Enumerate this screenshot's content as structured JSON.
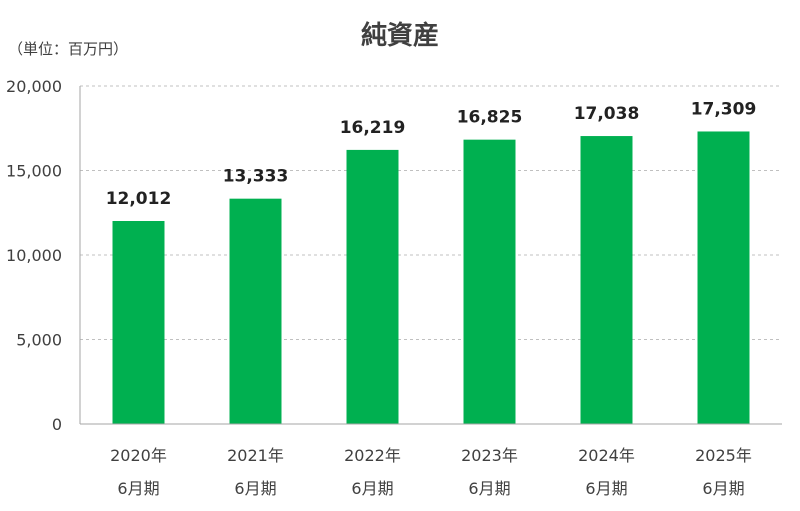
{
  "chart_data": {
    "type": "bar",
    "title": "純資産",
    "unit_label": "（単位：百万円）",
    "categories": [
      [
        "2020年",
        "6月期"
      ],
      [
        "2021年",
        "6月期"
      ],
      [
        "2022年",
        "6月期"
      ],
      [
        "2023年",
        "6月期"
      ],
      [
        "2024年",
        "6月期"
      ],
      [
        "2025年",
        "6月期"
      ]
    ],
    "values": [
      12012,
      13333,
      16219,
      16825,
      17038,
      17309
    ],
    "data_labels": [
      "12,012",
      "13,333",
      "16,219",
      "16,825",
      "17,038",
      "17,309"
    ],
    "ylim": [
      0,
      20000
    ],
    "yticks": [
      0,
      5000,
      10000,
      15000,
      20000
    ],
    "ytick_labels": [
      "0",
      "5,000",
      "10,000",
      "15,000",
      "20,000"
    ],
    "grid": true,
    "legend": "none",
    "colors": {
      "bar": "#00b050",
      "grid": "#c0c0c0",
      "axis": "#a6a6a6"
    }
  }
}
